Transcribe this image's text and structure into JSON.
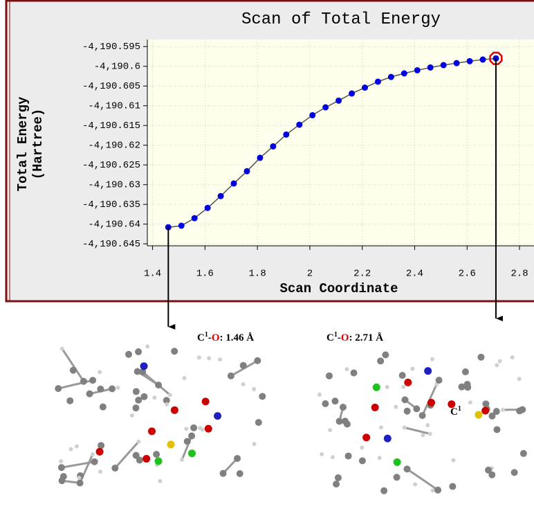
{
  "chart_data": {
    "type": "line",
    "title": "Scan of Total Energy",
    "y_label": [
      "Total Energy",
      "(Hartree)"
    ],
    "x_label": "Scan Coordinate",
    "x": [
      1.46,
      1.51,
      1.56,
      1.61,
      1.66,
      1.71,
      1.76,
      1.81,
      1.86,
      1.91,
      1.96,
      2.01,
      2.06,
      2.11,
      2.16,
      2.21,
      2.26,
      2.31,
      2.36,
      2.41,
      2.46,
      2.51,
      2.56,
      2.61,
      2.66,
      2.71
    ],
    "series": [
      {
        "name": "Total Energy",
        "color": "#0000e0",
        "values": [
          -4190.6408,
          -4190.6404,
          -4190.6385,
          -4190.6359,
          -4190.6329,
          -4190.6297,
          -4190.6266,
          -4190.6232,
          -4190.6203,
          -4190.6173,
          -4190.6148,
          -4190.6124,
          -4190.6104,
          -4190.6087,
          -4190.6069,
          -4190.6054,
          -4190.6039,
          -4190.6027,
          -4190.6018,
          -4190.601,
          -4190.6003,
          -4190.5997,
          -4190.5992,
          -4190.5987,
          -4190.5983,
          -4190.598
        ]
      }
    ],
    "highlight_index": 25,
    "highlight_color": "#e00000",
    "line_color": "#505050",
    "xlim": [
      1.38,
      2.85
    ],
    "ylim": [
      -4190.6455,
      -4190.5932
    ],
    "xticks": [
      1.4,
      1.6,
      1.8,
      2,
      2.2,
      2.4,
      2.6,
      2.8
    ],
    "yticks": [
      {
        "value": -4190.595,
        "label": "-4,190.595"
      },
      {
        "value": -4190.6,
        "label": "-4,190.6"
      },
      {
        "value": -4190.605,
        "label": "-4,190.605"
      },
      {
        "value": -4190.61,
        "label": "-4,190.61"
      },
      {
        "value": -4190.615,
        "label": "-4,190.615"
      },
      {
        "value": -4190.62,
        "label": "-4,190.62"
      },
      {
        "value": -4190.625,
        "label": "-4,190.625"
      },
      {
        "value": -4190.63,
        "label": "-4,190.63"
      },
      {
        "value": -4190.635,
        "label": "-4,190.635"
      },
      {
        "value": -4190.64,
        "label": "-4,190.64"
      },
      {
        "value": -4190.645,
        "label": "-4,190.645"
      }
    ],
    "grid": true
  },
  "annotations": [
    {
      "atom": "C",
      "superscript": "1",
      "dash": "-",
      "bond_atom": "O",
      "distance": ": 1.46 Å"
    },
    {
      "atom": "C",
      "superscript": "1",
      "dash": "-",
      "bond_atom": "O",
      "distance": ": 2.71 Å"
    }
  ],
  "molecule_label": {
    "atom": "C",
    "superscript": "1"
  }
}
